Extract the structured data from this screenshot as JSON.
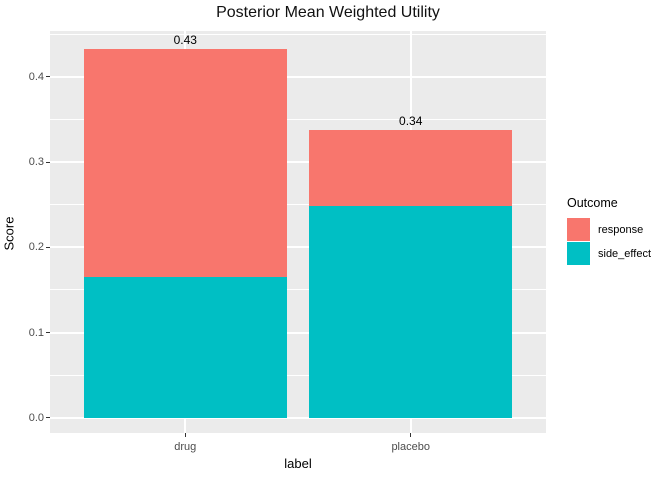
{
  "title": "Posterior Mean Weighted Utility",
  "chart_data": {
    "type": "bar",
    "stacked": true,
    "title": "Posterior Mean Weighted Utility",
    "xlabel": "label",
    "ylabel": "Score",
    "categories": [
      "drug",
      "placebo"
    ],
    "series": [
      {
        "name": "side_effect",
        "color": "#00BFC4",
        "values": [
          0.165,
          0.248
        ]
      },
      {
        "name": "response",
        "color": "#F8766D",
        "values": [
          0.268,
          0.09
        ]
      }
    ],
    "totals": [
      0.433,
      0.338
    ],
    "total_labels": [
      "0.43",
      "0.34"
    ],
    "y_ticks": [
      0.0,
      0.1,
      0.2,
      0.3,
      0.4
    ],
    "y_tick_labels": [
      "0.0",
      "0.1",
      "0.2",
      "0.3",
      "0.4"
    ],
    "y_minor_ticks": [
      0.05,
      0.15,
      0.25,
      0.35,
      0.45
    ],
    "ylim": [
      -0.018,
      0.454
    ],
    "grid": true,
    "legend": {
      "title": "Outcome",
      "position": "right",
      "items": [
        {
          "label": "response",
          "color": "#F8766D"
        },
        {
          "label": "side_effect",
          "color": "#00BFC4"
        }
      ]
    },
    "colors": {
      "panel_background": "#EBEBEB",
      "grid": "#FFFFFF",
      "tick_label": "#4D4D4D"
    }
  }
}
